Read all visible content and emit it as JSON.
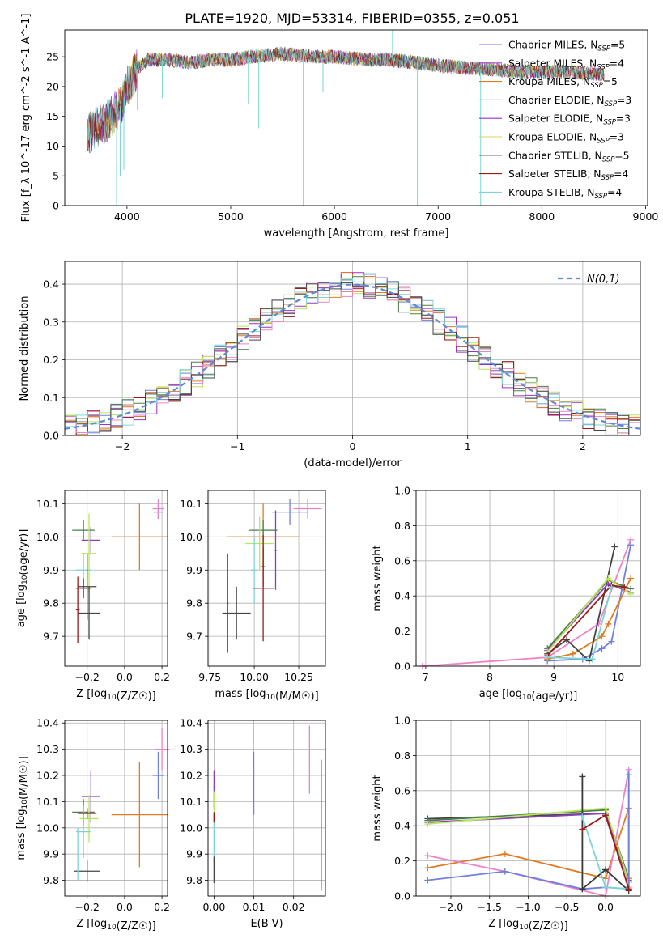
{
  "figure_title": "PLATE=1920, MJD=53314, FIBERID=0355, z=0.051",
  "palette": [
    "#6f7fe0",
    "#8a3fbf",
    "#e07b23",
    "#3a3a3a",
    "#3c7f3c",
    "#d0d040",
    "#9b1b1b",
    "#d8a8d8",
    "#6fd6d6",
    "#ee82c8",
    "#b8e65a",
    "#888888"
  ],
  "chart_data": [
    {
      "id": "spectrum",
      "type": "line",
      "title": "PLATE=1920, MJD=53314, FIBERID=0355, z=0.051",
      "xlabel": "wavelength [Angstrom, rest frame]",
      "ylabel": "Flux [f_λ 10^-17 erg cm^-2 s^-1 A^-1]",
      "xlim": [
        3400,
        9020
      ],
      "ylim": [
        0,
        29.5
      ],
      "xticks": [
        4000,
        5000,
        6000,
        7000,
        8000,
        9000
      ],
      "yticks": [
        0,
        5,
        10,
        15,
        20,
        25
      ],
      "grid": false,
      "legend_position": "top-right",
      "legend": [
        {
          "label": "Chabrier MILES, N",
          "sub": "SSP",
          "suffix": "=5",
          "color": "#6f7fe0"
        },
        {
          "label": "Salpeter MILES, N",
          "sub": "SSP",
          "suffix": "=4",
          "color": "#9b3fbf"
        },
        {
          "label": "Kroupa MILES, N",
          "sub": "SSP",
          "suffix": "=5",
          "color": "#e07b23"
        },
        {
          "label": "Chabrier ELODIE, N",
          "sub": "SSP",
          "suffix": "=3",
          "color": "#4a7f4a"
        },
        {
          "label": "Salpeter ELODIE, N",
          "sub": "SSP",
          "suffix": "=3",
          "color": "#a030c0"
        },
        {
          "label": "Kroupa ELODIE, N",
          "sub": "SSP",
          "suffix": "=3",
          "color": "#d8d850"
        },
        {
          "label": "Chabrier STELIB, N",
          "sub": "SSP",
          "suffix": "=5",
          "color": "#3a3a3a"
        },
        {
          "label": "Salpeter STELIB, N",
          "sub": "SSP",
          "suffix": "=4",
          "color": "#9b1b1b"
        },
        {
          "label": "Kroupa STELIB, N",
          "sub": "SSP",
          "suffix": "=4",
          "color": "#7ad6d6"
        }
      ],
      "continuum": [
        [
          3620,
          12
        ],
        [
          3700,
          13
        ],
        [
          3800,
          14
        ],
        [
          3900,
          16
        ],
        [
          3950,
          17
        ],
        [
          4000,
          20
        ],
        [
          4100,
          23
        ],
        [
          4200,
          24.5
        ],
        [
          4400,
          24.5
        ],
        [
          4600,
          24
        ],
        [
          4800,
          24.5
        ],
        [
          5000,
          24.5
        ],
        [
          5200,
          25
        ],
        [
          5500,
          25.5
        ],
        [
          5800,
          25
        ],
        [
          6000,
          25
        ],
        [
          6300,
          24.5
        ],
        [
          6500,
          24.5
        ],
        [
          6800,
          24
        ],
        [
          7000,
          23.5
        ],
        [
          7400,
          23
        ],
        [
          7800,
          22.5
        ],
        [
          8200,
          22.5
        ],
        [
          8600,
          22
        ]
      ],
      "spikes": [
        [
          3900,
          0
        ],
        [
          3935,
          5
        ],
        [
          3970,
          6
        ],
        [
          4100,
          16
        ],
        [
          4340,
          18
        ],
        [
          5170,
          17
        ],
        [
          5270,
          13
        ],
        [
          5700,
          0
        ],
        [
          5890,
          19
        ],
        [
          6560,
          30
        ],
        [
          6800,
          0
        ],
        [
          7410,
          0
        ]
      ]
    },
    {
      "id": "residuals",
      "type": "histogram",
      "xlabel": "(data-model)/error",
      "ylabel": "Normed distribution",
      "xlim": [
        -2.5,
        2.5
      ],
      "ylim": [
        0,
        0.46
      ],
      "xticks": [
        -2,
        -1,
        0,
        1,
        2
      ],
      "yticks": [
        0.0,
        0.1,
        0.2,
        0.3,
        0.4
      ],
      "grid": true,
      "legend_position": "top-right",
      "legend_label": "N(0,1)",
      "bin_width": 0.1,
      "series_colors": [
        "#6f7fe0",
        "#e07b23",
        "#4a7f4a",
        "#a030c0",
        "#b8e65a",
        "#9b1b1b",
        "#ee82c8",
        "#7ad6d6",
        "#444444"
      ],
      "reference_curve": "normal"
    },
    {
      "id": "age-vs-Z",
      "type": "errorbar",
      "xlabel": "Z [log10(Z/Z☉)]",
      "ylabel": "age  [log10(age/yr)]",
      "xlim": [
        -0.32,
        0.23
      ],
      "ylim": [
        9.61,
        10.14
      ],
      "xticks": [
        -0.2,
        0.0,
        0.2
      ],
      "yticks": [
        9.7,
        9.8,
        9.9,
        10.0,
        10.1
      ],
      "grid": true,
      "points": [
        {
          "x": 0.18,
          "y": 10.075,
          "xerr": 0.025,
          "yerr": 0.02,
          "color": "#6f7fe0"
        },
        {
          "x": 0.18,
          "y": 10.085,
          "xerr": 0.03,
          "yerr": 0.03,
          "color": "#ee82c8"
        },
        {
          "x": 0.08,
          "y": 10.0,
          "xerr": 0.15,
          "yerr": 0.1,
          "color": "#e07b23"
        },
        {
          "x": -0.22,
          "y": 10.02,
          "xerr": 0.06,
          "yerr": 0.03,
          "color": "#4a7f4a"
        },
        {
          "x": -0.18,
          "y": 9.99,
          "xerr": 0.05,
          "yerr": 0.04,
          "color": "#8a3fbf"
        },
        {
          "x": -0.19,
          "y": 9.95,
          "xerr": 0.04,
          "yerr": 0.12,
          "color": "#b8e65a"
        },
        {
          "x": -0.22,
          "y": 9.9,
          "xerr": 0.04,
          "yerr": 0.05,
          "color": "#7ad6d6"
        },
        {
          "x": -0.2,
          "y": 9.85,
          "xerr": 0.05,
          "yerr": 0.1,
          "color": "#444444"
        },
        {
          "x": -0.22,
          "y": 9.845,
          "xerr": 0.04,
          "yerr": 0.03,
          "color": "#9b1b1b"
        },
        {
          "x": -0.19,
          "y": 9.77,
          "xerr": 0.06,
          "yerr": 0.08,
          "color": "#444444"
        },
        {
          "x": -0.25,
          "y": 9.78,
          "xerr": 0.01,
          "yerr": 0.1,
          "color": "#9b1b1b"
        }
      ]
    },
    {
      "id": "age-vs-mass",
      "type": "errorbar",
      "xlabel": "mass [log10(M/M☉)]",
      "ylabel": "",
      "xlim": [
        9.74,
        10.4
      ],
      "ylim": [
        9.61,
        10.14
      ],
      "xticks": [
        9.75,
        10.0,
        10.25
      ],
      "yticks": [
        9.7,
        9.8,
        9.9,
        10.0,
        10.1
      ],
      "grid": true,
      "points": [
        {
          "x": 10.2,
          "y": 10.075,
          "xerr": 0.1,
          "yerr": 0.04,
          "color": "#6f7fe0"
        },
        {
          "x": 10.3,
          "y": 10.085,
          "xerr": 0.08,
          "yerr": 0.03,
          "color": "#ee82c8"
        },
        {
          "x": 10.05,
          "y": 10.0,
          "xerr": 0.2,
          "yerr": 0.1,
          "color": "#e07b23"
        },
        {
          "x": 10.05,
          "y": 10.02,
          "xerr": 0.08,
          "yerr": 0.03,
          "color": "#4a7f4a"
        },
        {
          "x": 10.12,
          "y": 9.96,
          "xerr": 0.01,
          "yerr": 0.12,
          "color": "#8a3fbf"
        },
        {
          "x": 10.03,
          "y": 9.98,
          "xerr": 0.08,
          "yerr": 0.08,
          "color": "#b8e65a"
        },
        {
          "x": 10.0,
          "y": 9.9,
          "xerr": 0.02,
          "yerr": 0.1,
          "color": "#7ad6d6"
        },
        {
          "x": 10.05,
          "y": 9.91,
          "xerr": 0.01,
          "yerr": 0.06,
          "color": "#444444"
        },
        {
          "x": 10.05,
          "y": 9.845,
          "xerr": 0.06,
          "yerr": 0.16,
          "color": "#9b1b1b"
        },
        {
          "x": 9.9,
          "y": 9.77,
          "xerr": 0.08,
          "yerr": 0.08,
          "color": "#444444"
        },
        {
          "x": 9.85,
          "y": 9.8,
          "xerr": 0.005,
          "yerr": 0.15,
          "color": "#444444"
        }
      ]
    },
    {
      "id": "massweight-vs-age",
      "type": "line",
      "xlabel": "age  [log10(age/yr)]",
      "ylabel": "mass weight",
      "xlim": [
        6.85,
        10.35
      ],
      "ylim": [
        0,
        1.0
      ],
      "xticks": [
        7,
        8,
        9,
        10
      ],
      "yticks": [
        0.0,
        0.2,
        0.4,
        0.6,
        0.8,
        1.0
      ],
      "grid": true,
      "series": [
        {
          "color": "#ee82c8",
          "x": [
            6.95,
            8.9,
            9.7,
            10.2
          ],
          "y": [
            0.0,
            0.05,
            0.24,
            0.72
          ]
        },
        {
          "color": "#6f7fe0",
          "x": [
            8.9,
            9.45,
            9.75,
            9.9,
            10.2
          ],
          "y": [
            0.03,
            0.04,
            0.1,
            0.14,
            0.69
          ]
        },
        {
          "color": "#e07b23",
          "x": [
            8.9,
            9.3,
            9.75,
            9.85,
            10.2
          ],
          "y": [
            0.04,
            0.07,
            0.17,
            0.24,
            0.5
          ]
        },
        {
          "color": "#444444",
          "x": [
            8.9,
            9.2,
            9.55,
            9.95
          ],
          "y": [
            0.07,
            0.15,
            0.03,
            0.68
          ]
        },
        {
          "color": "#4a7f4a",
          "x": [
            8.9,
            9.85,
            10.2
          ],
          "y": [
            0.1,
            0.49,
            0.44
          ]
        },
        {
          "color": "#8a3fbf",
          "x": [
            8.9,
            9.85,
            10.2
          ],
          "y": [
            0.09,
            0.47,
            0.42
          ]
        },
        {
          "color": "#b8e65a",
          "x": [
            8.9,
            9.85,
            10.2
          ],
          "y": [
            0.08,
            0.5,
            0.41
          ]
        },
        {
          "color": "#9b1b1b",
          "x": [
            8.9,
            9.9,
            10.1
          ],
          "y": [
            0.06,
            0.46,
            0.45
          ]
        },
        {
          "color": "#7ad6d6",
          "x": [
            8.9,
            9.6,
            9.9
          ],
          "y": [
            0.05,
            0.04,
            0.45
          ]
        }
      ]
    },
    {
      "id": "mass-vs-Z",
      "type": "errorbar",
      "xlabel": "Z [log10(Z/Z☉)]",
      "ylabel": "mass [log10(M/M☉)]",
      "xlim": [
        -0.32,
        0.23
      ],
      "ylim": [
        9.74,
        10.41
      ],
      "xticks": [
        -0.2,
        0.0,
        0.2
      ],
      "yticks": [
        9.8,
        9.9,
        10.0,
        10.1,
        10.2,
        10.3,
        10.4
      ],
      "grid": true,
      "points": [
        {
          "x": 0.18,
          "y": 10.2,
          "xerr": 0.03,
          "yerr": 0.09,
          "color": "#6f7fe0"
        },
        {
          "x": 0.2,
          "y": 10.3,
          "xerr": 0.04,
          "yerr": 0.08,
          "color": "#ee82c8"
        },
        {
          "x": 0.08,
          "y": 10.05,
          "xerr": 0.15,
          "yerr": 0.2,
          "color": "#e07b23"
        },
        {
          "x": -0.22,
          "y": 10.06,
          "xerr": 0.06,
          "yerr": 0.05,
          "color": "#4a7f4a"
        },
        {
          "x": -0.18,
          "y": 10.12,
          "xerr": 0.05,
          "yerr": 0.1,
          "color": "#8a3fbf"
        },
        {
          "x": -0.19,
          "y": 10.035,
          "xerr": 0.05,
          "yerr": 0.09,
          "color": "#b8e65a"
        },
        {
          "x": -0.22,
          "y": 9.985,
          "xerr": 0.04,
          "yerr": 0.1,
          "color": "#7ad6d6"
        },
        {
          "x": -0.2,
          "y": 10.055,
          "xerr": 0.05,
          "yerr": 0.02,
          "color": "#9b1b1b"
        },
        {
          "x": -0.2,
          "y": 9.835,
          "xerr": 0.07,
          "yerr": 0.04,
          "color": "#444444"
        },
        {
          "x": -0.25,
          "y": 9.9,
          "xerr": 0.005,
          "yerr": 0.1,
          "color": "#7ad6d6"
        }
      ]
    },
    {
      "id": "mass-vs-EBV",
      "type": "errorbar",
      "xlabel": "E(B-V)",
      "ylabel": "",
      "xlim": [
        -0.0015,
        0.028
      ],
      "ylim": [
        9.74,
        10.41
      ],
      "xticks": [
        0.0,
        0.01,
        0.02
      ],
      "yticks": [
        9.8,
        9.9,
        10.0,
        10.1,
        10.2,
        10.3,
        10.4
      ],
      "grid": true,
      "points": [
        {
          "x": 0.01,
          "y": 10.17,
          "xerr": 0,
          "yerr": 0.12,
          "color": "#6f7fe0"
        },
        {
          "x": 0.024,
          "y": 10.26,
          "xerr": 0,
          "yerr": 0.13,
          "color": "#ee82c8"
        },
        {
          "x": 0.027,
          "y": 10.01,
          "xerr": 0,
          "yerr": 0.25,
          "color": "#e07b23"
        },
        {
          "x": 0.0,
          "y": 10.15,
          "xerr": 0,
          "yerr": 0.07,
          "color": "#8a3fbf"
        },
        {
          "x": 0.0,
          "y": 10.08,
          "xerr": 0,
          "yerr": 0.06,
          "color": "#b8e65a"
        },
        {
          "x": 0.0,
          "y": 9.96,
          "xerr": 0,
          "yerr": 0.1,
          "color": "#7ad6d6"
        },
        {
          "x": 0.0,
          "y": 9.84,
          "xerr": 0,
          "yerr": 0.05,
          "color": "#444444"
        },
        {
          "x": 0.0,
          "y": 10.04,
          "xerr": 0,
          "yerr": 0.02,
          "color": "#9b1b1b"
        }
      ]
    },
    {
      "id": "massweight-vs-Z",
      "type": "line",
      "xlabel": "Z [log10(Z/Z☉)]",
      "ylabel": "mass weight",
      "xlim": [
        -2.45,
        0.45
      ],
      "ylim": [
        0,
        1.0
      ],
      "xticks": [
        -2.0,
        -1.5,
        -1.0,
        -0.5,
        0.0
      ],
      "yticks": [
        0.0,
        0.2,
        0.4,
        0.6,
        0.8,
        1.0
      ],
      "grid": true,
      "series": [
        {
          "color": "#444444",
          "x": [
            -2.3,
            0.0,
            0.3
          ],
          "y": [
            0.44,
            0.47,
            0.08
          ]
        },
        {
          "color": "#4a7f4a",
          "x": [
            -2.3,
            0.0,
            0.3
          ],
          "y": [
            0.43,
            0.49,
            0.1
          ]
        },
        {
          "color": "#8a3fbf",
          "x": [
            -2.3,
            0.0,
            0.3
          ],
          "y": [
            0.42,
            0.47,
            0.09
          ]
        },
        {
          "color": "#b8e65a",
          "x": [
            -2.3,
            0.0,
            0.3
          ],
          "y": [
            0.41,
            0.5,
            0.08
          ]
        },
        {
          "color": "#e07b23",
          "x": [
            -2.3,
            -1.3,
            0.0,
            0.3,
            0.3
          ],
          "y": [
            0.16,
            0.24,
            0.1,
            0.5,
            0.1
          ]
        },
        {
          "color": "#ee82c8",
          "x": [
            -2.3,
            -1.3,
            0.0,
            0.3,
            0.3
          ],
          "y": [
            0.23,
            0.14,
            0.0,
            0.72,
            0.05
          ]
        },
        {
          "color": "#6f7fe0",
          "x": [
            -2.3,
            -1.3,
            -0.3,
            0.0,
            0.3,
            0.3
          ],
          "y": [
            0.09,
            0.14,
            0.04,
            0.05,
            0.04,
            0.69
          ]
        },
        {
          "color": "#3a3a3a",
          "x": [
            -0.3,
            -0.3,
            0.0,
            0.3
          ],
          "y": [
            0.68,
            0.04,
            0.15,
            0.03
          ]
        },
        {
          "color": "#7ad6d6",
          "x": [
            -0.3,
            0.0,
            0.3
          ],
          "y": [
            0.45,
            0.05,
            0.04
          ]
        },
        {
          "color": "#9b1b1b",
          "x": [
            -0.3,
            0.0,
            0.3
          ],
          "y": [
            0.38,
            0.46,
            0.04
          ]
        }
      ]
    }
  ]
}
